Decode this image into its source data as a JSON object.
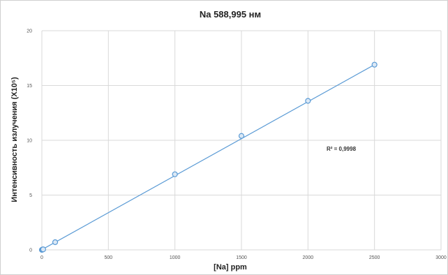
{
  "chart_data": {
    "type": "scatter",
    "title": "Na 588,995 нм",
    "xlabel": "[Na] ppm",
    "ylabel": "Интенсивность излучения (X10⁵)",
    "xlim": [
      0,
      3000
    ],
    "ylim": [
      0,
      20
    ],
    "x_ticks": [
      "0",
      "500",
      "1000",
      "1500",
      "2000",
      "2500",
      "3000"
    ],
    "y_ticks": [
      "0",
      "5",
      "10",
      "15",
      "20"
    ],
    "grid": true,
    "legend": "none",
    "annotation": "R² = 0,9998",
    "series": [
      {
        "x": [
          0,
          5,
          10,
          100,
          1000,
          1500,
          2000,
          2500
        ],
        "y": [
          0,
          0.03,
          0.05,
          0.7,
          6.9,
          10.4,
          13.6,
          16.9
        ],
        "trendline": {
          "x": [
            0,
            2500
          ],
          "y": [
            0.02,
            16.9
          ]
        },
        "color": "#5b9bd5"
      }
    ]
  }
}
